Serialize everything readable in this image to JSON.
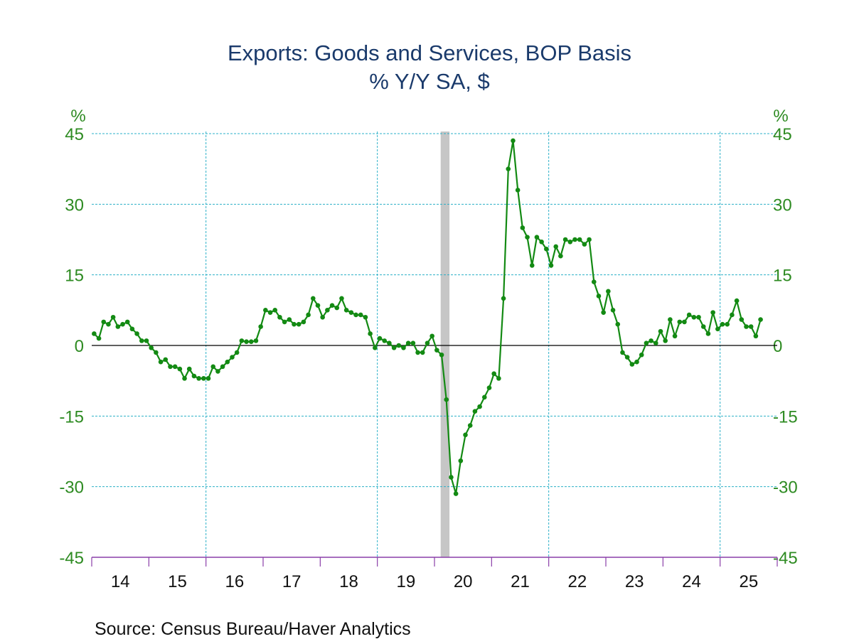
{
  "chart_data": {
    "type": "line",
    "title": "Exports: Goods and Services, BOP Basis",
    "subtitle": "% Y/Y   SA, $",
    "ylabel_left": "%",
    "ylabel_right": "%",
    "ylim": [
      -45,
      45
    ],
    "yticks": [
      "45",
      "30",
      "15",
      "0",
      "-15",
      "-30",
      "-45"
    ],
    "ytick_values": [
      45,
      30,
      15,
      0,
      -15,
      -30,
      -45
    ],
    "xticks": [
      "14",
      "15",
      "16",
      "17",
      "18",
      "19",
      "20",
      "21",
      "22",
      "23",
      "24",
      "25"
    ],
    "x_start": "2014-01",
    "frequency": "monthly",
    "grid": true,
    "recession_shading": {
      "start": "2020-02",
      "end": "2020-04"
    },
    "source": "Source:  Census Bureau/Haver Analytics",
    "series": [
      {
        "name": "Exports % Y/Y",
        "color": "#138a13",
        "values": [
          2.5,
          1.5,
          5,
          4.5,
          6,
          4,
          4.5,
          5,
          3.5,
          2.5,
          1,
          1,
          -0.5,
          -1.5,
          -3.5,
          -3,
          -4.5,
          -4.5,
          -5,
          -7,
          -5,
          -6.5,
          -7,
          -7,
          -7,
          -4.5,
          -5.5,
          -4.5,
          -3.5,
          -2.5,
          -1.5,
          1,
          0.8,
          0.8,
          1,
          4,
          7.5,
          7,
          7.5,
          6,
          5,
          5.5,
          4.5,
          4.5,
          5,
          6.5,
          10,
          8.5,
          6,
          7.5,
          8.5,
          8,
          10,
          7.5,
          7,
          6.5,
          6.5,
          6,
          2.5,
          -0.5,
          1.5,
          1,
          0.5,
          -0.5,
          0,
          -0.5,
          0.5,
          0.5,
          -1.5,
          -1.5,
          0.5,
          2,
          -1,
          -2,
          -11.5,
          -28,
          -31.5,
          -24.5,
          -19,
          -17,
          -14,
          -13,
          -11,
          -9,
          -6,
          -7,
          10,
          37.5,
          43.5,
          33,
          25,
          23,
          17,
          23,
          22,
          20.5,
          17,
          21,
          19,
          22.5,
          22,
          22.5,
          22.5,
          21.5,
          22.5,
          13.5,
          10.5,
          7,
          11.5,
          7.5,
          4.5,
          -1.5,
          -2.5,
          -4,
          -3.5,
          -2,
          0.5,
          1,
          0.5,
          3,
          1,
          5.5,
          2,
          5,
          5,
          6.5,
          6,
          6,
          4,
          2.5,
          7,
          3.5,
          4.5,
          4.5,
          6.5,
          9.5,
          5.5,
          4,
          4,
          2,
          5.5
        ]
      }
    ]
  }
}
